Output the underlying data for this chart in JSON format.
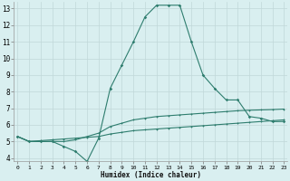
{
  "xlabel": "Humidex (Indice chaleur)",
  "x": [
    0,
    1,
    2,
    3,
    4,
    5,
    6,
    7,
    8,
    9,
    10,
    11,
    12,
    13,
    14,
    15,
    16,
    17,
    18,
    19,
    20,
    21,
    22,
    23
  ],
  "line_main": [
    5.3,
    5.0,
    5.0,
    5.0,
    4.7,
    4.4,
    3.8,
    5.2,
    8.2,
    9.6,
    11.0,
    12.5,
    13.2,
    13.2,
    13.2,
    11.0,
    9.0,
    8.2,
    7.5,
    7.5,
    6.5,
    6.4,
    6.2,
    6.2
  ],
  "line_mid": [
    5.3,
    5.0,
    5.0,
    5.0,
    5.0,
    5.1,
    5.3,
    5.5,
    5.9,
    6.1,
    6.3,
    6.4,
    6.5,
    6.55,
    6.6,
    6.65,
    6.7,
    6.75,
    6.8,
    6.85,
    6.88,
    6.9,
    6.92,
    6.95
  ],
  "line_low": [
    5.3,
    5.0,
    5.05,
    5.1,
    5.15,
    5.2,
    5.25,
    5.3,
    5.45,
    5.55,
    5.65,
    5.7,
    5.75,
    5.8,
    5.85,
    5.9,
    5.95,
    6.0,
    6.05,
    6.1,
    6.15,
    6.2,
    6.25,
    6.3
  ],
  "color": "#2e7d6e",
  "bg_color": "#d9eff0",
  "grid_color": "#c0d8d8",
  "ylim": [
    3.8,
    13.4
  ],
  "xlim": [
    -0.3,
    23.3
  ],
  "yticks": [
    4,
    5,
    6,
    7,
    8,
    9,
    10,
    11,
    12,
    13
  ],
  "xticks": [
    0,
    1,
    2,
    3,
    4,
    5,
    6,
    7,
    8,
    9,
    10,
    11,
    12,
    13,
    14,
    15,
    16,
    17,
    18,
    19,
    20,
    21,
    22,
    23
  ]
}
